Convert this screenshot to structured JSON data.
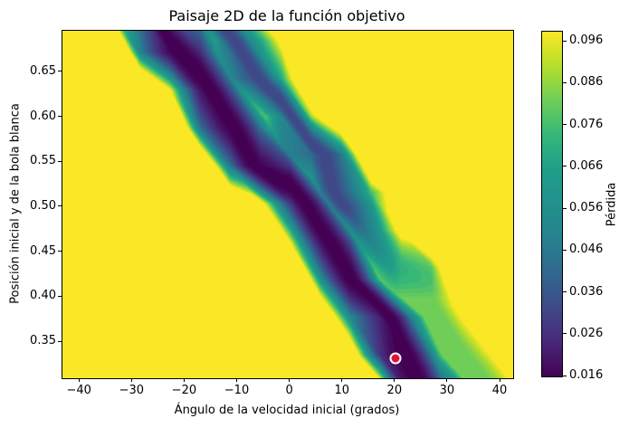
{
  "title": "Paisaje 2D de la función objetivo",
  "chart_data": {
    "type": "heatmap",
    "subtype": "filled_contour_tricontourf",
    "title": "Paisaje 2D de la función objetivo",
    "xlabel": "Ángulo de la velocidad inicial (grados)",
    "ylabel": "Posición inicial y de la bola blanca",
    "xlim": [
      -43.3,
      42.4
    ],
    "ylim": [
      0.31,
      0.696
    ],
    "x_ticks": [
      {
        "v": -40,
        "label": "−40"
      },
      {
        "v": -30,
        "label": "−30"
      },
      {
        "v": -20,
        "label": "−20"
      },
      {
        "v": -10,
        "label": "−10"
      },
      {
        "v": 0,
        "label": "0"
      },
      {
        "v": 10,
        "label": "10"
      },
      {
        "v": 20,
        "label": "20"
      },
      {
        "v": 30,
        "label": "30"
      },
      {
        "v": 40,
        "label": "40"
      }
    ],
    "y_ticks": [
      {
        "v": 0.35,
        "label": "0.35"
      },
      {
        "v": 0.4,
        "label": "0.40"
      },
      {
        "v": 0.45,
        "label": "0.45"
      },
      {
        "v": 0.5,
        "label": "0.50"
      },
      {
        "v": 0.55,
        "label": "0.55"
      },
      {
        "v": 0.6,
        "label": "0.60"
      },
      {
        "v": 0.65,
        "label": "0.65"
      }
    ],
    "grid": false,
    "legend": "none",
    "colormap": "viridis",
    "colormap_stops": [
      {
        "t": 0.0,
        "hex": "#440154"
      },
      {
        "t": 0.1,
        "hex": "#482878"
      },
      {
        "t": 0.2,
        "hex": "#3e4a89"
      },
      {
        "t": 0.3,
        "hex": "#31688e"
      },
      {
        "t": 0.4,
        "hex": "#26828e"
      },
      {
        "t": 0.5,
        "hex": "#21918c"
      },
      {
        "t": 0.6,
        "hex": "#1f9e89"
      },
      {
        "t": 0.7,
        "hex": "#35b779"
      },
      {
        "t": 0.8,
        "hex": "#6ece58"
      },
      {
        "t": 0.9,
        "hex": "#b5de2b"
      },
      {
        "t": 1.0,
        "hex": "#fde725"
      }
    ],
    "colorbar": {
      "label": "Pérdida",
      "vmin": 0.016,
      "vmax": 0.0984,
      "ticks": [
        {
          "v": 0.016,
          "label": "0.016"
        },
        {
          "v": 0.026,
          "label": "0.026"
        },
        {
          "v": 0.036,
          "label": "0.036"
        },
        {
          "v": 0.046,
          "label": "0.046"
        },
        {
          "v": 0.056,
          "label": "0.056"
        },
        {
          "v": 0.066,
          "label": "0.066"
        },
        {
          "v": 0.076,
          "label": "0.076"
        },
        {
          "v": 0.086,
          "label": "0.086"
        },
        {
          "v": 0.096,
          "label": "0.096"
        }
      ]
    },
    "field": {
      "description": "Loss landscape: high-loss yellow plateau with two diagonal low-loss valleys running from upper-left to lower-right; triangulated-contour faceting",
      "background_loss": 0.0984,
      "level_step": 0.002,
      "valleys": [
        {
          "name": "primary-valley",
          "x_at_y0": 25.0,
          "y0": 0.32,
          "dx_dy": -128,
          "half_width": 9.0,
          "profile_exp": 2.0,
          "min_loss": 0.016,
          "noise_amp": 3.4
        },
        {
          "name": "secondary-valley",
          "x_at_y0": 14.5,
          "y0": 0.475,
          "dx_dy": -118,
          "half_width": 7.5,
          "profile_exp": 1.8,
          "min_loss": 0.032,
          "noise_amp": 2.8,
          "fade": {
            "start_y": 0.5,
            "range_y": 0.1,
            "added_loss": 0.05
          }
        }
      ],
      "noise_lattice": {
        "x_spacing": 5.7,
        "y_spacing": 0.042
      }
    },
    "marker": {
      "x": 20.0,
      "y": 0.332,
      "fill": "#dc143c",
      "edge": "#ffffff"
    }
  }
}
